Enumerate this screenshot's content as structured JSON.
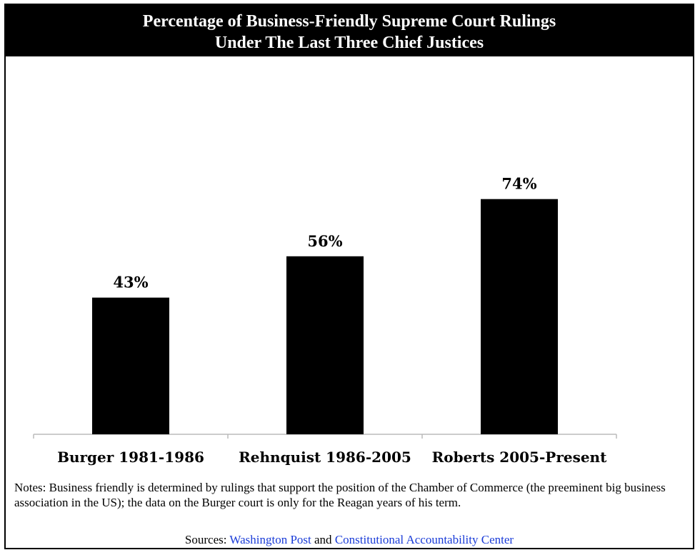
{
  "chart_data": {
    "type": "bar",
    "title": "Percentage of Business-Friendly Supreme Court Rulings",
    "subtitle": "Under The Last Three Chief Justices",
    "categories": [
      "Burger 1981-1986",
      "Rehnquist 1986-2005",
      "Roberts 2005-Present"
    ],
    "values": [
      43,
      56,
      74
    ],
    "value_labels": [
      "43%",
      "56%",
      "74%"
    ],
    "xlabel": "",
    "ylabel": "",
    "ylim": [
      0,
      100
    ],
    "grid": false,
    "legend": "none",
    "bar_color": "#000000"
  },
  "notes": {
    "text": "Notes: Business friendly is determined by rulings that support the position of the Chamber of Commerce (the preeminent big business association in the US); the data on the Burger court is only for the Reagan years of his term."
  },
  "sources": {
    "prefix": "Sources: ",
    "link1": "Washington Post",
    "joiner": " and ",
    "link2": "Constitutional Accountability Center"
  },
  "colors": {
    "background": "#ffffff",
    "title_background": "#000000",
    "title_text": "#ffffff",
    "axis": "#bbbbbb",
    "link": "#1a3cd8"
  }
}
